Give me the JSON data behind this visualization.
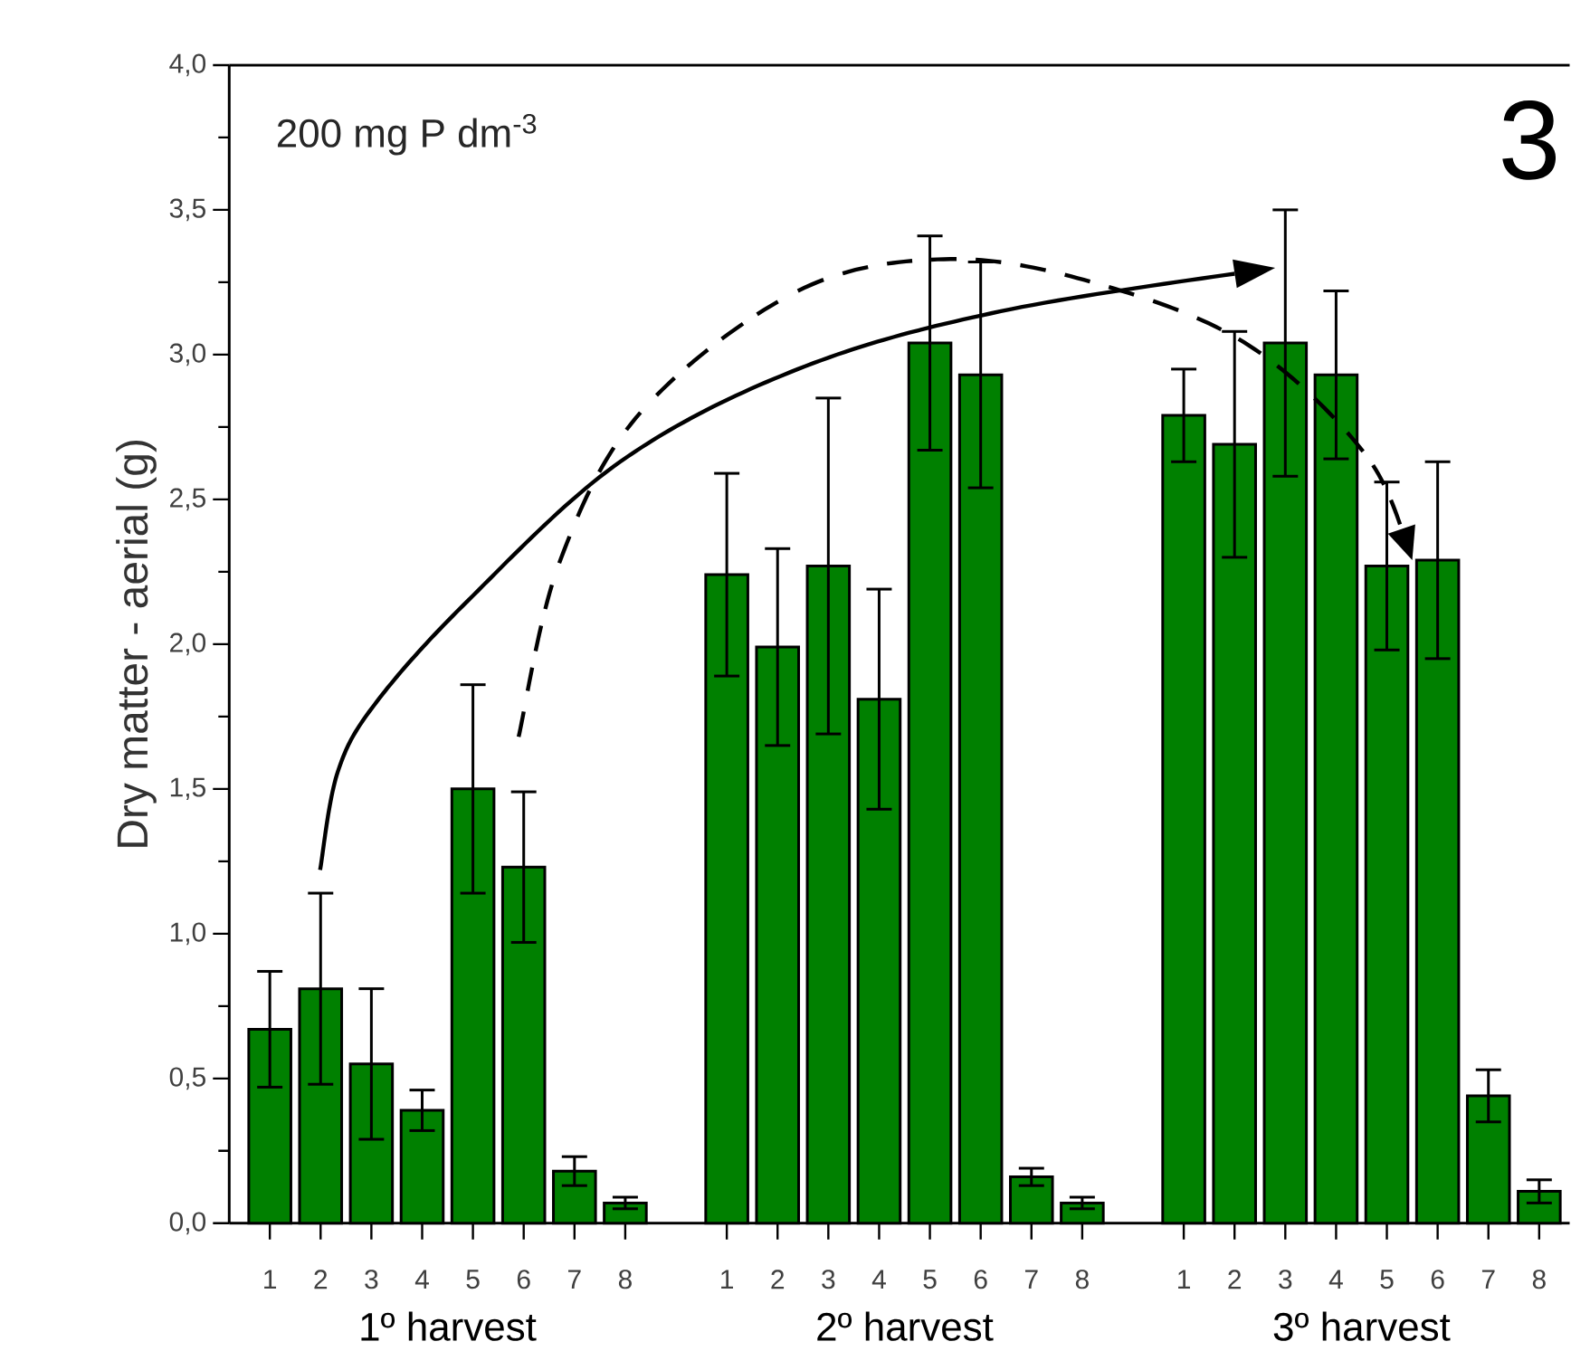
{
  "chart_data": {
    "type": "bar",
    "ylabel": "Dry matter - aerial (g)",
    "annotations": [
      "200 mg P dm$^{-3}$",
      "3",
      "1º harvest",
      "2º harvest",
      "3º harvest"
    ],
    "categories": [
      "1",
      "2",
      "3",
      "4",
      "5",
      "6",
      "7",
      "8",
      null,
      "1",
      "2",
      "3",
      "4",
      "5",
      "6",
      "7",
      "8",
      null,
      "1",
      "2",
      "3",
      "4",
      "5",
      "6",
      "7",
      "8"
    ],
    "values": [
      0.67,
      0.81,
      0.55,
      0.39,
      1.5,
      1.23,
      0.18,
      0.07,
      null,
      2.24,
      1.99,
      2.27,
      1.81,
      3.04,
      2.93,
      0.16,
      0.07,
      null,
      2.79,
      2.69,
      3.04,
      2.93,
      2.27,
      2.29,
      0.44,
      0.11
    ],
    "errors": [
      0.2,
      0.33,
      0.26,
      0.07,
      0.36,
      0.26,
      0.05,
      0.02,
      null,
      0.35,
      0.34,
      0.58,
      0.38,
      0.37,
      0.39,
      0.03,
      0.02,
      null,
      0.16,
      0.39,
      0.46,
      0.29,
      0.29,
      0.34,
      0.09,
      0.04
    ],
    "color": "#008000",
    "ylim": [
      0,
      4
    ],
    "yticks": [
      {
        "value": 0,
        "label": "0,0"
      },
      {
        "value": 0.5,
        "label": "0,5"
      },
      {
        "value": 1,
        "label": "1,0"
      },
      {
        "value": 1.5,
        "label": "1,5"
      },
      {
        "value": 2,
        "label": "2,0"
      },
      {
        "value": 2.5,
        "label": "2,5"
      },
      {
        "value": 3,
        "label": "3,0"
      },
      {
        "value": 3.5,
        "label": "3,5"
      },
      {
        "value": 4,
        "label": "4,0"
      }
    ]
  }
}
